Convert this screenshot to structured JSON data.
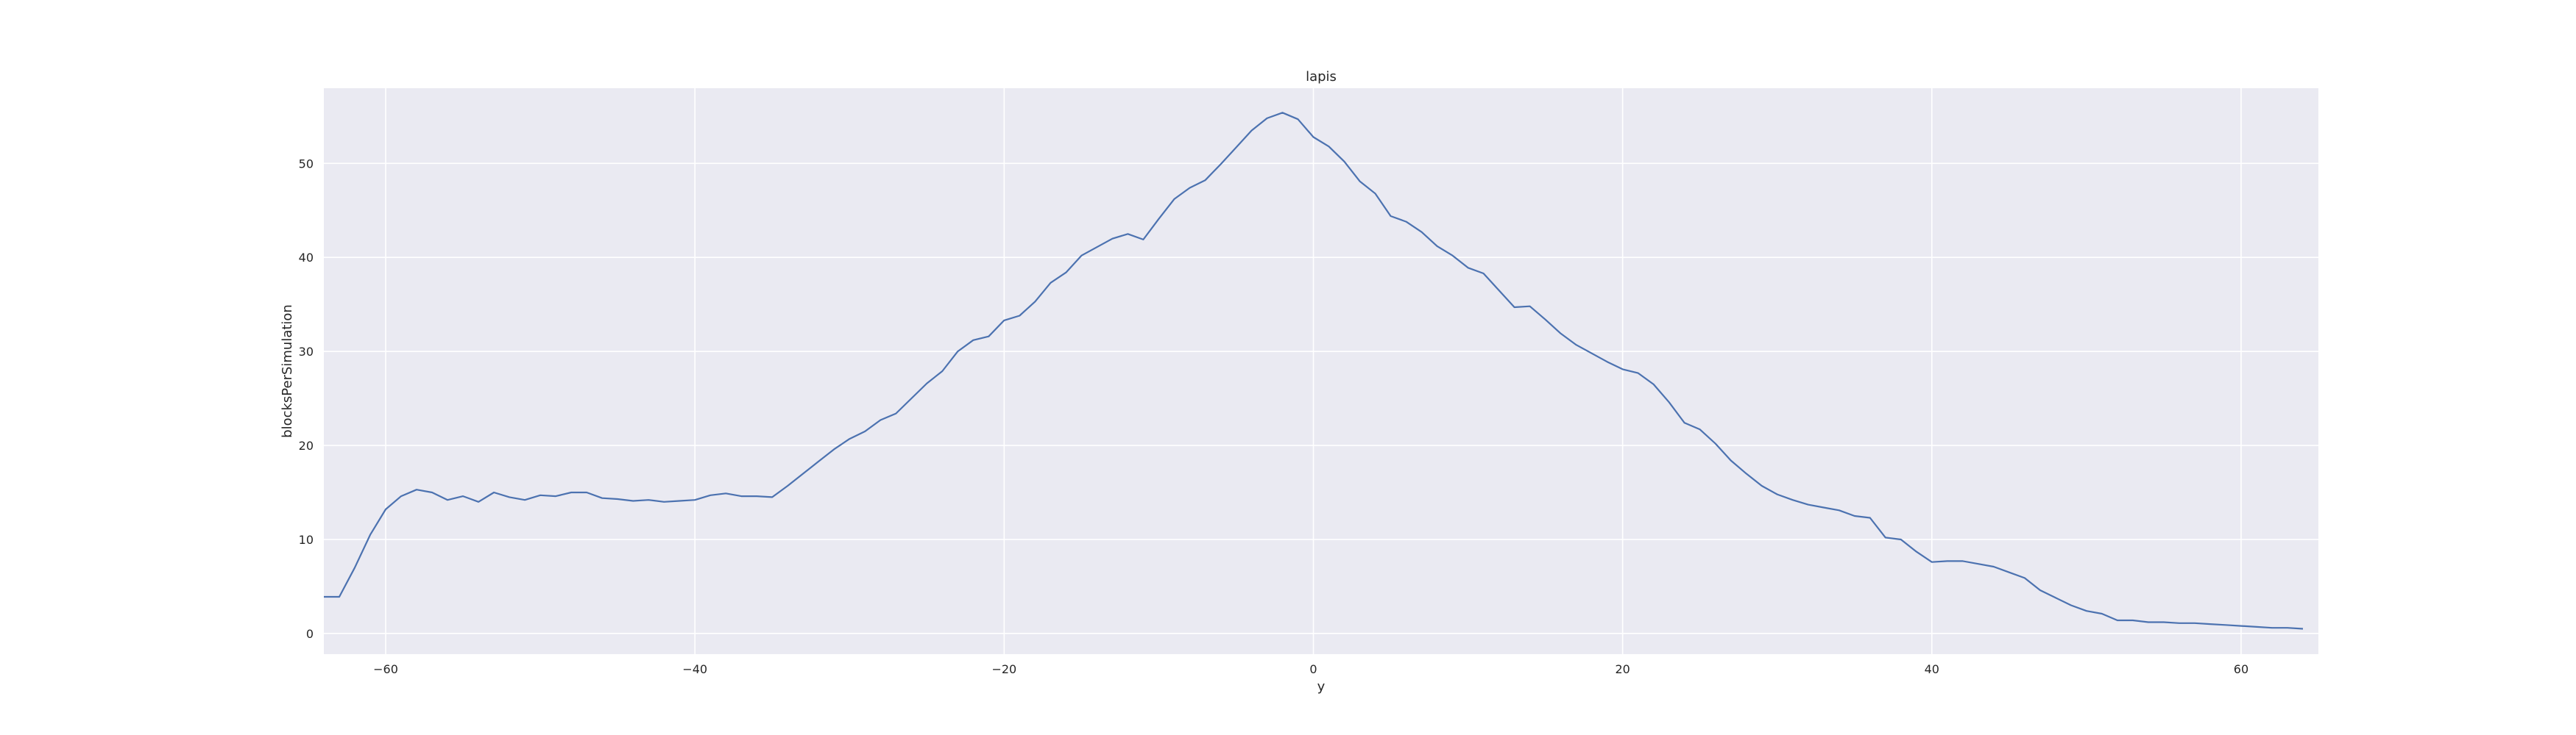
{
  "chart_data": {
    "type": "line",
    "title": "lapis",
    "xlabel": "y",
    "ylabel": "blocksPerSimulation",
    "xlim": [
      -64,
      65
    ],
    "ylim": [
      -2.2,
      58
    ],
    "x_ticks": [
      -60,
      -40,
      -20,
      0,
      20,
      40,
      60
    ],
    "x_tick_labels": [
      "−60",
      "−40",
      "−20",
      "0",
      "20",
      "40",
      "60"
    ],
    "y_ticks": [
      0,
      10,
      20,
      30,
      40,
      50
    ],
    "y_tick_labels": [
      "0",
      "10",
      "20",
      "30",
      "40",
      "50"
    ],
    "grid": true,
    "background": "#eaeaf2",
    "grid_color": "#ffffff",
    "line_color": "#4c72b0",
    "series": [
      {
        "x": [
          -64,
          -63,
          -62,
          -61,
          -60,
          -59,
          -58,
          -57,
          -56,
          -55,
          -54,
          -53,
          -52,
          -51,
          -50,
          -49,
          -48,
          -47,
          -46,
          -45,
          -44,
          -43,
          -42,
          -41,
          -40,
          -39,
          -38,
          -37,
          -36,
          -35,
          -34,
          -33,
          -32,
          -31,
          -30,
          -29,
          -28,
          -27,
          -26,
          -25,
          -24,
          -23,
          -22,
          -21,
          -20,
          -19,
          -18,
          -17,
          -16,
          -15,
          -14,
          -13,
          -12,
          -11,
          -10,
          -9,
          -8,
          -7,
          -6,
          -5,
          -4,
          -3,
          -2,
          -1,
          0,
          1,
          2,
          3,
          4,
          5,
          6,
          7,
          8,
          9,
          10,
          11,
          12,
          13,
          14,
          15,
          16,
          17,
          18,
          19,
          20,
          21,
          22,
          23,
          24,
          25,
          26,
          27,
          28,
          29,
          30,
          31,
          32,
          33,
          34,
          35,
          36,
          37,
          38,
          39,
          40,
          41,
          42,
          43,
          44,
          45,
          46,
          47,
          48,
          49,
          50,
          51,
          52,
          53,
          54,
          55,
          56,
          57,
          58,
          59,
          60,
          61,
          62,
          63,
          64
        ],
        "values": [
          3.9,
          3.9,
          7.0,
          10.5,
          13.2,
          14.6,
          15.3,
          15.0,
          14.2,
          14.6,
          14.0,
          15.0,
          14.5,
          14.2,
          14.7,
          14.6,
          15.0,
          15.0,
          14.4,
          14.3,
          14.1,
          14.2,
          14.0,
          14.1,
          14.2,
          14.7,
          14.9,
          14.6,
          14.6,
          14.5,
          15.7,
          17.0,
          18.3,
          19.6,
          20.7,
          21.5,
          22.7,
          23.4,
          25.0,
          26.6,
          27.9,
          30.0,
          31.2,
          31.6,
          33.3,
          33.8,
          35.3,
          37.3,
          38.4,
          40.2,
          41.1,
          42.0,
          42.5,
          41.9,
          44.1,
          46.2,
          47.4,
          48.2,
          49.9,
          51.7,
          53.5,
          54.8,
          55.4,
          54.7,
          52.8,
          51.8,
          50.2,
          48.1,
          46.8,
          44.4,
          43.8,
          42.7,
          41.2,
          40.2,
          38.9,
          38.3,
          36.5,
          34.7,
          34.8,
          33.4,
          31.9,
          30.7,
          29.8,
          28.9,
          28.1,
          27.7,
          26.5,
          24.6,
          22.4,
          21.7,
          20.2,
          18.4,
          17.0,
          15.7,
          14.8,
          14.2,
          13.7,
          13.4,
          13.1,
          12.5,
          12.3,
          10.2,
          10.0,
          8.7,
          7.6,
          7.7,
          7.7,
          7.4,
          7.1,
          6.5,
          5.9,
          4.6,
          3.8,
          3.0,
          2.4,
          2.1,
          1.4,
          1.4,
          1.2,
          1.2,
          1.1,
          1.1,
          1.0,
          0.9,
          0.8,
          0.7,
          0.6,
          0.6,
          0.5
        ]
      }
    ]
  }
}
